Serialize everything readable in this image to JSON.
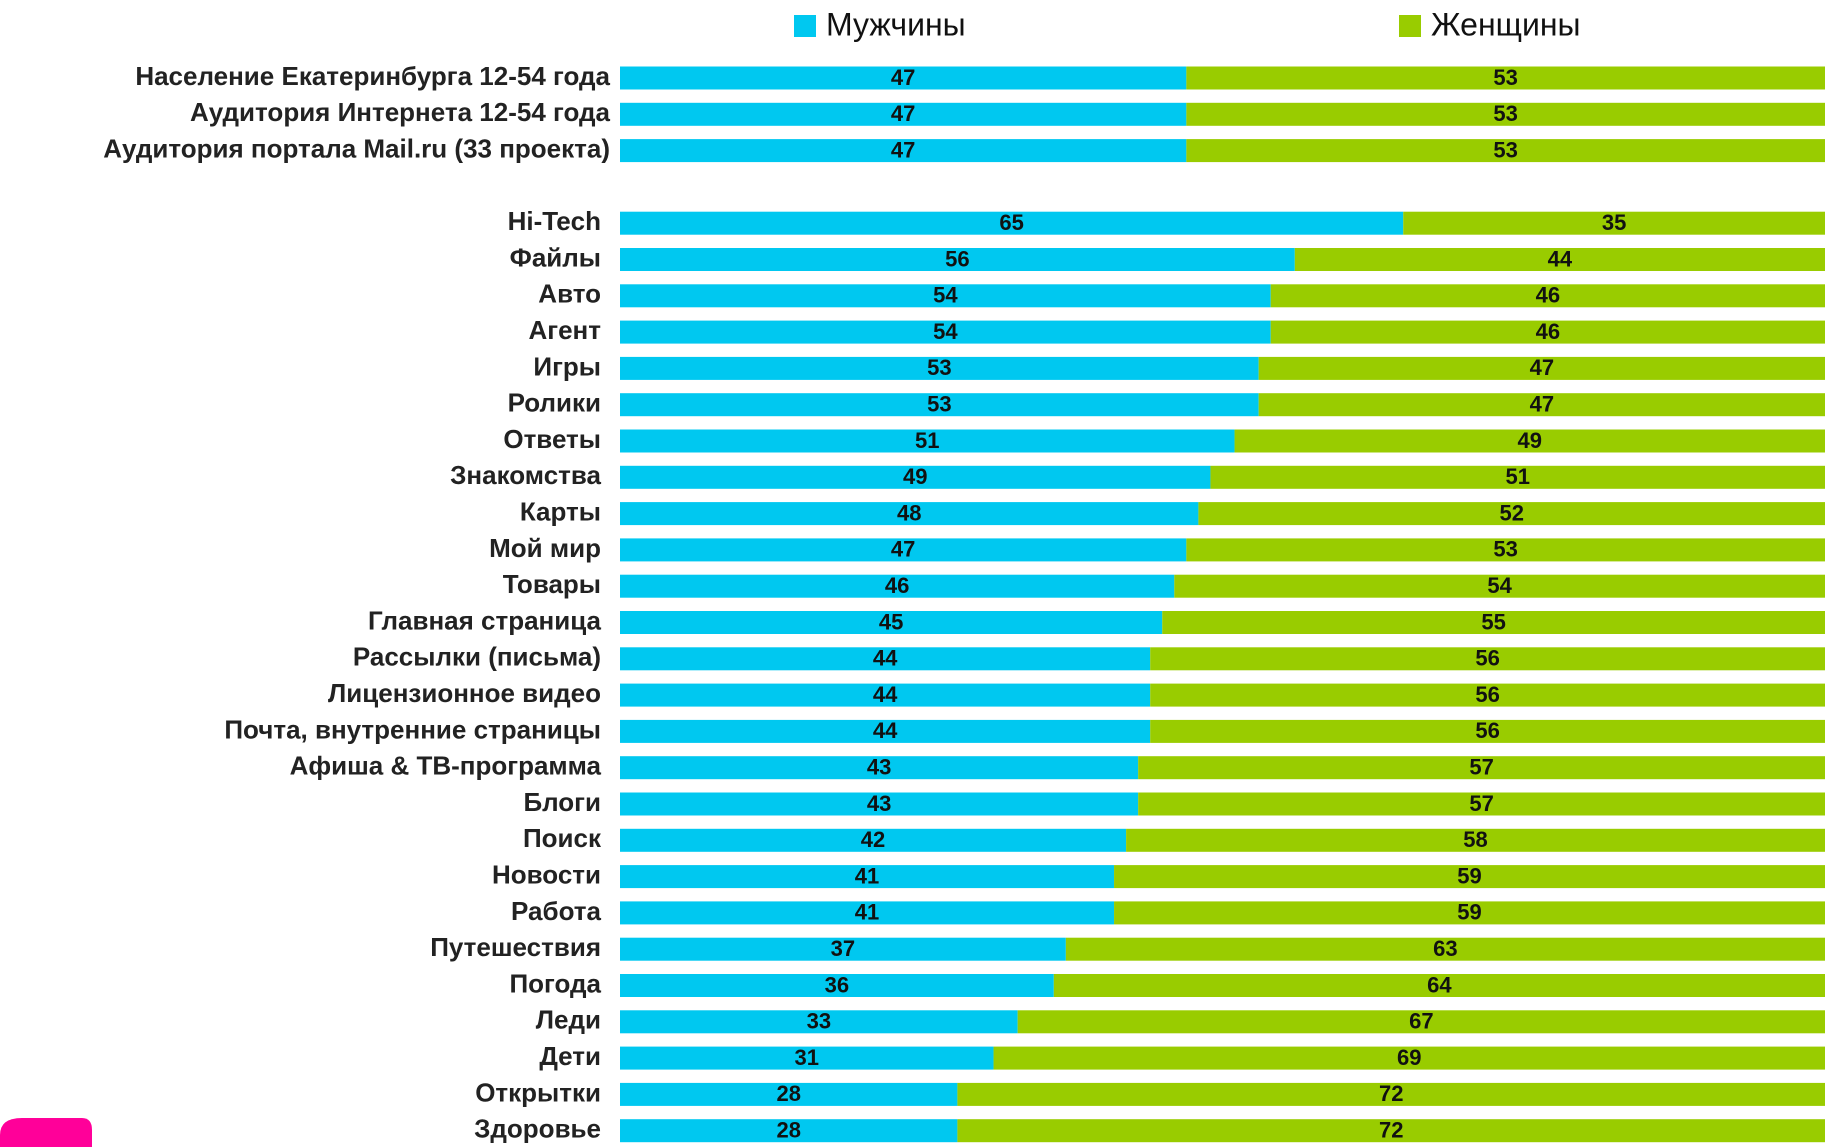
{
  "chart_data": {
    "type": "stacked_bar_horizontal",
    "categories": [
      "Население Екатеринбурга 12-54 года",
      "Аудитория Интернета 12-54 года",
      "Аудитория портала Mail.ru (33 проекта)",
      "Hi-Tech",
      "Файлы",
      "Авто",
      "Агент",
      "Игры",
      "Ролики",
      "Ответы",
      "Знакомства",
      "Карты",
      "Мой мир",
      "Товары",
      "Главная страница",
      "Рассылки (письма)",
      "Лицензионное видео",
      "Почта, внутренние страницы",
      "Афиша & ТВ-программа",
      "Блоги",
      "Поиск",
      "Новости",
      "Работа",
      "Путешествия",
      "Погода",
      "Леди",
      "Дети",
      "Открытки",
      "Здоровье"
    ],
    "series": [
      {
        "name": "Мужчины",
        "color": "#00c8f0",
        "values": [
          47,
          47,
          47,
          65,
          56,
          54,
          54,
          53,
          53,
          51,
          49,
          48,
          47,
          46,
          45,
          44,
          44,
          44,
          43,
          43,
          42,
          41,
          41,
          37,
          36,
          33,
          31,
          28,
          28
        ]
      },
      {
        "name": "Женщины",
        "color": "#99cc00",
        "values": [
          53,
          53,
          53,
          35,
          44,
          46,
          46,
          47,
          47,
          49,
          51,
          52,
          53,
          54,
          55,
          56,
          56,
          56,
          57,
          57,
          58,
          59,
          59,
          63,
          64,
          67,
          69,
          72,
          72
        ]
      }
    ]
  }
}
